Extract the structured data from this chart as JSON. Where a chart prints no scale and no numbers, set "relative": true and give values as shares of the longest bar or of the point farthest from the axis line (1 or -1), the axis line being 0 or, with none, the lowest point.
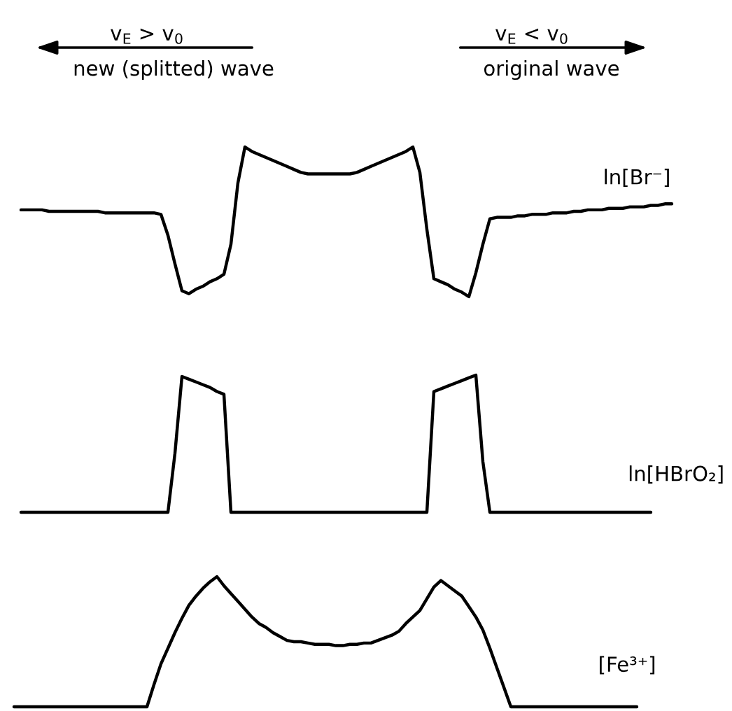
{
  "chart_data": [
    {
      "type": "line",
      "relative": true,
      "tick_labels": false,
      "categories": [
        null,
        null,
        null,
        null,
        null,
        null,
        null,
        null,
        null,
        null,
        null,
        null,
        null,
        null,
        null,
        null,
        null,
        null,
        null,
        null,
        null,
        null,
        null,
        null,
        null,
        null,
        null,
        null,
        null,
        null,
        null,
        null,
        null,
        null,
        null,
        null,
        null,
        null,
        null,
        null,
        null,
        null,
        null,
        null,
        null,
        null,
        null,
        null,
        null,
        null,
        null,
        null,
        null,
        null,
        null,
        null,
        null,
        null,
        null,
        null,
        null,
        null,
        null,
        null,
        null,
        null,
        null,
        null,
        null,
        null,
        null,
        null,
        null,
        null,
        null,
        null,
        null,
        null,
        null,
        null,
        null,
        null,
        null,
        null,
        null,
        null,
        null,
        null,
        null,
        null,
        null,
        null,
        null,
        null,
        null
      ],
      "series": [
        {
          "name": "ln[Br⁻]",
          "color": "#000000",
          "values": [
            null,
            0.58,
            0.58,
            0.58,
            0.58,
            0.57,
            0.57,
            0.57,
            0.57,
            0.57,
            0.57,
            0.57,
            0.57,
            0.56,
            0.56,
            0.56,
            0.56,
            0.56,
            0.56,
            0.56,
            0.56,
            0.55,
            0.41,
            0.22,
            0.04,
            0.02,
            0.05,
            0.07,
            0.1,
            0.12,
            0.15,
            0.35,
            0.76,
            1.0,
            0.97,
            0.95,
            0.93,
            0.91,
            0.89,
            0.87,
            0.85,
            0.83,
            0.82,
            0.82,
            0.82,
            0.82,
            0.82,
            0.82,
            0.82,
            0.83,
            0.85,
            0.87,
            0.89,
            0.91,
            0.93,
            0.95,
            0.97,
            1.0,
            0.83,
            0.45,
            0.12,
            0.1,
            0.08,
            0.05,
            0.03,
            0,
            0.16,
            0.35,
            0.52,
            0.53,
            0.53,
            0.53,
            0.54,
            0.54,
            0.55,
            0.55,
            0.55,
            0.56,
            0.56,
            0.56,
            0.57,
            0.57,
            0.58,
            0.58,
            0.58,
            0.59,
            0.59,
            0.59,
            0.6,
            0.6,
            0.6,
            0.61,
            0.61,
            0.62,
            0.62
          ]
        }
      ],
      "annotations": [
        "v$_{E}$ > v$_{0}$",
        "new (splitted) wave",
        "v$_{E}$ < v$_{0}$",
        "original wave"
      ]
    },
    {
      "type": "line",
      "relative": true,
      "tick_labels": false,
      "categories": [
        null,
        null,
        null,
        null,
        null,
        null,
        null,
        null,
        null,
        null,
        null,
        null,
        null,
        null,
        null,
        null,
        null,
        null,
        null,
        null,
        null,
        null,
        null,
        null,
        null,
        null,
        null,
        null,
        null,
        null,
        null,
        null,
        null,
        null,
        null,
        null,
        null,
        null,
        null,
        null,
        null,
        null,
        null,
        null,
        null,
        null,
        null,
        null,
        null,
        null,
        null,
        null,
        null,
        null,
        null,
        null,
        null,
        null,
        null,
        null,
        null,
        null,
        null,
        null,
        null,
        null,
        null,
        null,
        null,
        null,
        null,
        null,
        null,
        null,
        null,
        null,
        null,
        null,
        null,
        null,
        null,
        null,
        null,
        null,
        null,
        null,
        null,
        null,
        null,
        null,
        null,
        null,
        null,
        null,
        null
      ],
      "series": [
        {
          "name": "ln[HBrO₂]",
          "color": "#000000",
          "values": [
            null,
            0,
            0,
            0,
            0,
            0,
            0,
            0,
            0,
            0,
            0,
            0,
            0,
            0,
            0,
            0,
            0,
            0,
            0,
            0,
            0,
            0,
            0,
            0.43,
            0.99,
            0.97,
            0.95,
            0.93,
            0.91,
            0.88,
            0.86,
            0,
            0,
            0,
            0,
            0,
            0,
            0,
            0,
            0,
            0,
            0,
            0,
            0,
            0,
            0,
            0,
            0,
            0,
            0,
            0,
            0,
            0,
            0,
            0,
            0,
            0,
            0,
            0,
            0,
            0.88,
            0.9,
            0.92,
            0.94,
            0.96,
            0.98,
            1.0,
            0.37,
            0,
            0,
            0,
            0,
            0,
            0,
            0,
            0,
            0,
            0,
            0,
            0,
            0,
            0,
            0,
            0,
            0,
            0,
            0,
            0,
            0,
            0,
            0,
            0,
            null,
            null,
            null
          ]
        }
      ]
    },
    {
      "type": "line",
      "relative": true,
      "tick_labels": false,
      "categories": [
        null,
        null,
        null,
        null,
        null,
        null,
        null,
        null,
        null,
        null,
        null,
        null,
        null,
        null,
        null,
        null,
        null,
        null,
        null,
        null,
        null,
        null,
        null,
        null,
        null,
        null,
        null,
        null,
        null,
        null,
        null,
        null,
        null,
        null,
        null,
        null,
        null,
        null,
        null,
        null,
        null,
        null,
        null,
        null,
        null,
        null,
        null,
        null,
        null,
        null,
        null,
        null,
        null,
        null,
        null,
        null,
        null,
        null,
        null,
        null,
        null,
        null,
        null,
        null,
        null,
        null,
        null,
        null,
        null,
        null,
        null,
        null,
        null,
        null,
        null,
        null,
        null,
        null,
        null,
        null,
        null,
        null,
        null,
        null,
        null,
        null,
        null,
        null,
        null,
        null,
        null,
        null,
        null,
        null,
        null
      ],
      "series": [
        {
          "name": "[Fe³⁺]",
          "color": "#000000",
          "values": [
            0,
            0,
            0,
            0,
            0,
            0,
            0,
            0,
            0,
            0,
            0,
            0,
            0,
            0,
            0,
            0,
            0,
            0,
            0,
            0,
            0.17,
            0.33,
            0.45,
            0.57,
            0.68,
            0.78,
            0.85,
            0.91,
            0.96,
            1.0,
            0.93,
            0.87,
            0.81,
            0.75,
            0.69,
            0.64,
            0.61,
            0.57,
            0.54,
            0.51,
            0.5,
            0.5,
            0.49,
            0.48,
            0.48,
            0.48,
            0.47,
            0.47,
            0.48,
            0.48,
            0.49,
            0.49,
            0.51,
            0.53,
            0.55,
            0.58,
            0.64,
            0.69,
            0.74,
            0.83,
            0.92,
            0.97,
            0.93,
            0.89,
            0.85,
            0.77,
            0.69,
            0.59,
            0.45,
            0.3,
            0.15,
            0,
            0,
            0,
            0,
            0,
            0,
            0,
            0,
            0,
            0,
            0,
            0,
            0,
            0,
            0,
            0,
            0,
            0,
            0,
            null,
            null,
            null,
            null,
            null
          ]
        }
      ]
    }
  ]
}
